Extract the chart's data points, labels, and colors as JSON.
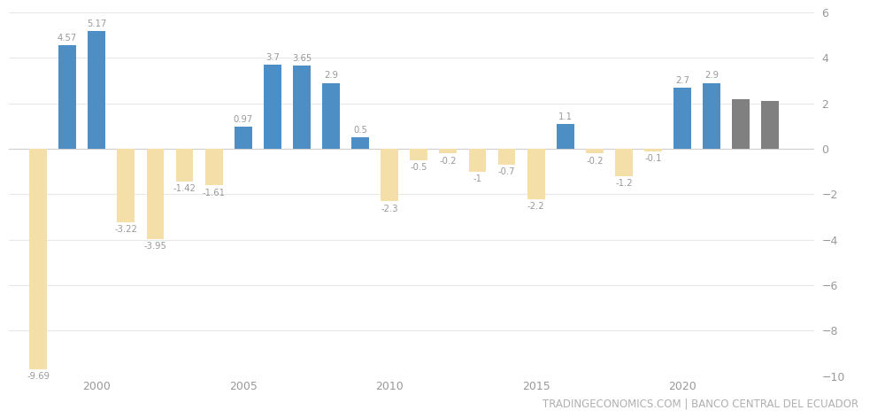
{
  "years": [
    1998,
    1999,
    2000,
    2001,
    2002,
    2003,
    2004,
    2005,
    2006,
    2007,
    2008,
    2009,
    2010,
    2011,
    2012,
    2013,
    2014,
    2015,
    2016,
    2017,
    2018,
    2019,
    2020,
    2021,
    2022,
    2023
  ],
  "values": [
    -9.69,
    4.57,
    5.17,
    -3.22,
    -3.95,
    -1.42,
    -1.61,
    0.97,
    3.7,
    3.65,
    2.9,
    0.5,
    -2.3,
    -0.5,
    -0.2,
    -1.0,
    -0.7,
    -2.2,
    1.1,
    -0.2,
    -1.2,
    -0.1,
    2.7,
    2.9,
    2.2,
    2.1
  ],
  "colors": [
    "#f5dfa8",
    "#4d8fc4",
    "#4d8fc4",
    "#f5dfa8",
    "#f5dfa8",
    "#f5dfa8",
    "#f5dfa8",
    "#4d8fc4",
    "#4d8fc4",
    "#4d8fc4",
    "#4d8fc4",
    "#4d8fc4",
    "#f5dfa8",
    "#f5dfa8",
    "#f5dfa8",
    "#f5dfa8",
    "#f5dfa8",
    "#f5dfa8",
    "#4d8fc4",
    "#f5dfa8",
    "#f5dfa8",
    "#f5dfa8",
    "#4d8fc4",
    "#4d8fc4",
    "#808080",
    "#808080"
  ],
  "labels": [
    "-9.69",
    "4.57",
    "5.17",
    "-3.22",
    "-3.95",
    "-1.42",
    "-1.61",
    "0.97",
    "3.7",
    "3.65",
    "2.9",
    "0.5",
    "-2.3",
    "-0.5",
    "-0.2",
    "-1",
    "-0.7",
    "-2.2",
    "1.1",
    "-0.2",
    "-1.2",
    "-0.1",
    "2.7",
    "2.9",
    null,
    null
  ],
  "ylim": [
    -10,
    6
  ],
  "yticks": [
    -10,
    -8,
    -6,
    -4,
    -2,
    0,
    2,
    4,
    6
  ],
  "xtick_years": [
    2000,
    2005,
    2010,
    2015,
    2020
  ],
  "background_color": "#ffffff",
  "bar_width": 0.6,
  "grid_color": "#e8e8e8",
  "label_color": "#999999",
  "footer_text": "TRADINGECONOMICS.COM | BANCO CENTRAL DEL ECUADOR",
  "footer_color": "#b0b0b0",
  "footer_fontsize": 8.5,
  "xlim_left": 1997.0,
  "xlim_right": 2024.5
}
